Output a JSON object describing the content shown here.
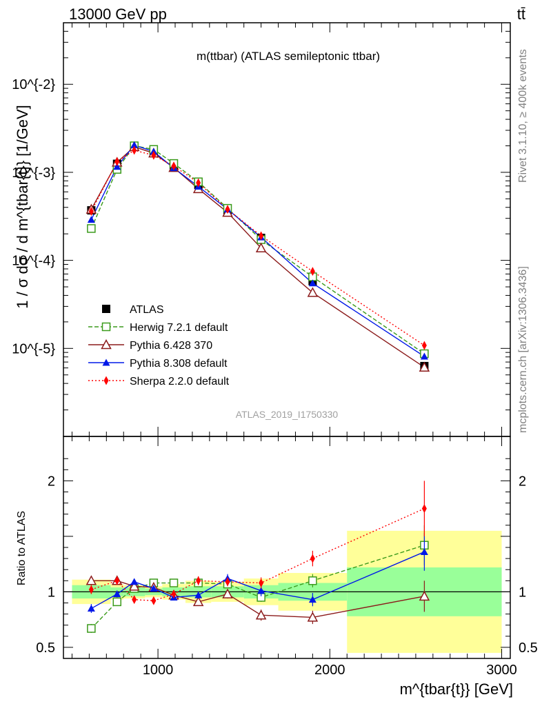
{
  "header": {
    "left_label": "13000 GeV pp",
    "right_label": "tt̄"
  },
  "side_labels": {
    "rivet": "Rivet 3.1.10, ≥ 400k events",
    "mcplots": "mcplots.cern.ch [arXiv:1306.3436]"
  },
  "chart_data": {
    "type": "line",
    "title": "m(ttbar) (ATLAS semileptonic ttbar)",
    "watermark": "ATLAS_2019_I1750330",
    "xlabel": "m^{tbar{t}} [GeV]",
    "ylabel": "1 / σ dσ / d m^{tbar{t}} [1/GeV]",
    "ratio_ylabel": "Ratio to ATLAS",
    "xlim": [
      450,
      3050
    ],
    "ylim": [
      1e-06,
      0.05
    ],
    "yscale": "log",
    "ratio_ylim": [
      0.4,
      2.4
    ],
    "x_ticks": [
      "1000",
      "2000",
      "3000"
    ],
    "y_ticks": [
      "10^{-5}",
      "10^{-4}",
      "10^{-3}",
      "10^{-2}"
    ],
    "ratio_ticks": [
      "0.5",
      "1",
      "2"
    ],
    "legend_position": "bottom-left",
    "bins": [
      [
        500,
        725
      ],
      [
        725,
        800
      ],
      [
        800,
        925
      ],
      [
        925,
        1025
      ],
      [
        1025,
        1160
      ],
      [
        1160,
        1310
      ],
      [
        1310,
        1500
      ],
      [
        1500,
        1700
      ],
      [
        1700,
        2100
      ],
      [
        2100,
        3000
      ]
    ],
    "x": [
      612,
      762,
      862,
      975,
      1092,
      1235,
      1405,
      1600,
      1900,
      2550
    ],
    "atlas": {
      "name": "ATLAS",
      "values": [
        0.00037,
        0.00125,
        0.00195,
        0.00175,
        0.00115,
        0.00072,
        0.00036,
        0.00018,
        5.8e-05,
        6.3e-06
      ],
      "stat_band": [
        0.06,
        0.04,
        0.04,
        0.03,
        0.04,
        0.05,
        0.05,
        0.06,
        0.08,
        0.22
      ],
      "total_band": [
        0.11,
        0.07,
        0.06,
        0.05,
        0.07,
        0.1,
        0.09,
        0.12,
        0.17,
        0.55
      ]
    },
    "series": [
      {
        "name": "Herwig 7.2.1 default",
        "color": "#3a9a1a",
        "dash": "6,3",
        "marker": "open-square",
        "values": [
          0.00023,
          0.00108,
          0.002,
          0.00182,
          0.00126,
          0.00078,
          0.00039,
          0.000172,
          6.5e-05,
          8.7e-06
        ],
        "ratio": [
          0.67,
          0.91,
          1.03,
          1.08,
          1.08,
          1.08,
          1.07,
          0.95,
          1.1,
          1.42
        ],
        "ratio_err": [
          0.04,
          0.02,
          0.02,
          0.02,
          0.02,
          0.03,
          0.03,
          0.04,
          0.06,
          0.18
        ]
      },
      {
        "name": "Pythia 6.428 370",
        "color": "#8b1a1a",
        "dash": "",
        "marker": "open-triangle",
        "values": [
          0.00038,
          0.0013,
          0.00195,
          0.00165,
          0.00113,
          0.00065,
          0.00035,
          0.000138,
          4.3e-05,
          6.1e-06
        ],
        "ratio": [
          1.1,
          1.1,
          1.05,
          1.04,
          0.97,
          0.91,
          0.98,
          0.79,
          0.77,
          0.96
        ],
        "ratio_err": [
          0.04,
          0.03,
          0.02,
          0.02,
          0.03,
          0.03,
          0.04,
          0.05,
          0.06,
          0.14
        ]
      },
      {
        "name": "Pythia 8.308 default",
        "color": "#0018e8",
        "dash": "",
        "marker": "filled-triangle",
        "values": [
          0.00029,
          0.00116,
          0.00204,
          0.00172,
          0.00112,
          0.00069,
          0.00038,
          0.000183,
          5.5e-05,
          8.1e-06
        ],
        "ratio": [
          0.85,
          0.98,
          1.09,
          1.03,
          0.95,
          0.97,
          1.12,
          1.01,
          0.93,
          1.36
        ],
        "ratio_err": [
          0.04,
          0.03,
          0.02,
          0.02,
          0.02,
          0.03,
          0.04,
          0.05,
          0.06,
          0.17
        ]
      },
      {
        "name": "Sherpa 2.2.0 default",
        "color": "#ff0000",
        "dash": "2,3",
        "marker": "filled-diamond",
        "values": [
          0.00036,
          0.00132,
          0.00178,
          0.00156,
          0.00118,
          0.00076,
          0.00038,
          0.00019,
          7.5e-05,
          1.08e-05
        ],
        "ratio": [
          1.02,
          1.1,
          0.93,
          0.92,
          0.98,
          1.1,
          1.09,
          1.08,
          1.3,
          1.75
        ],
        "ratio_err": [
          0.04,
          0.03,
          0.02,
          0.02,
          0.03,
          0.04,
          0.04,
          0.05,
          0.07,
          0.25
        ]
      }
    ]
  }
}
